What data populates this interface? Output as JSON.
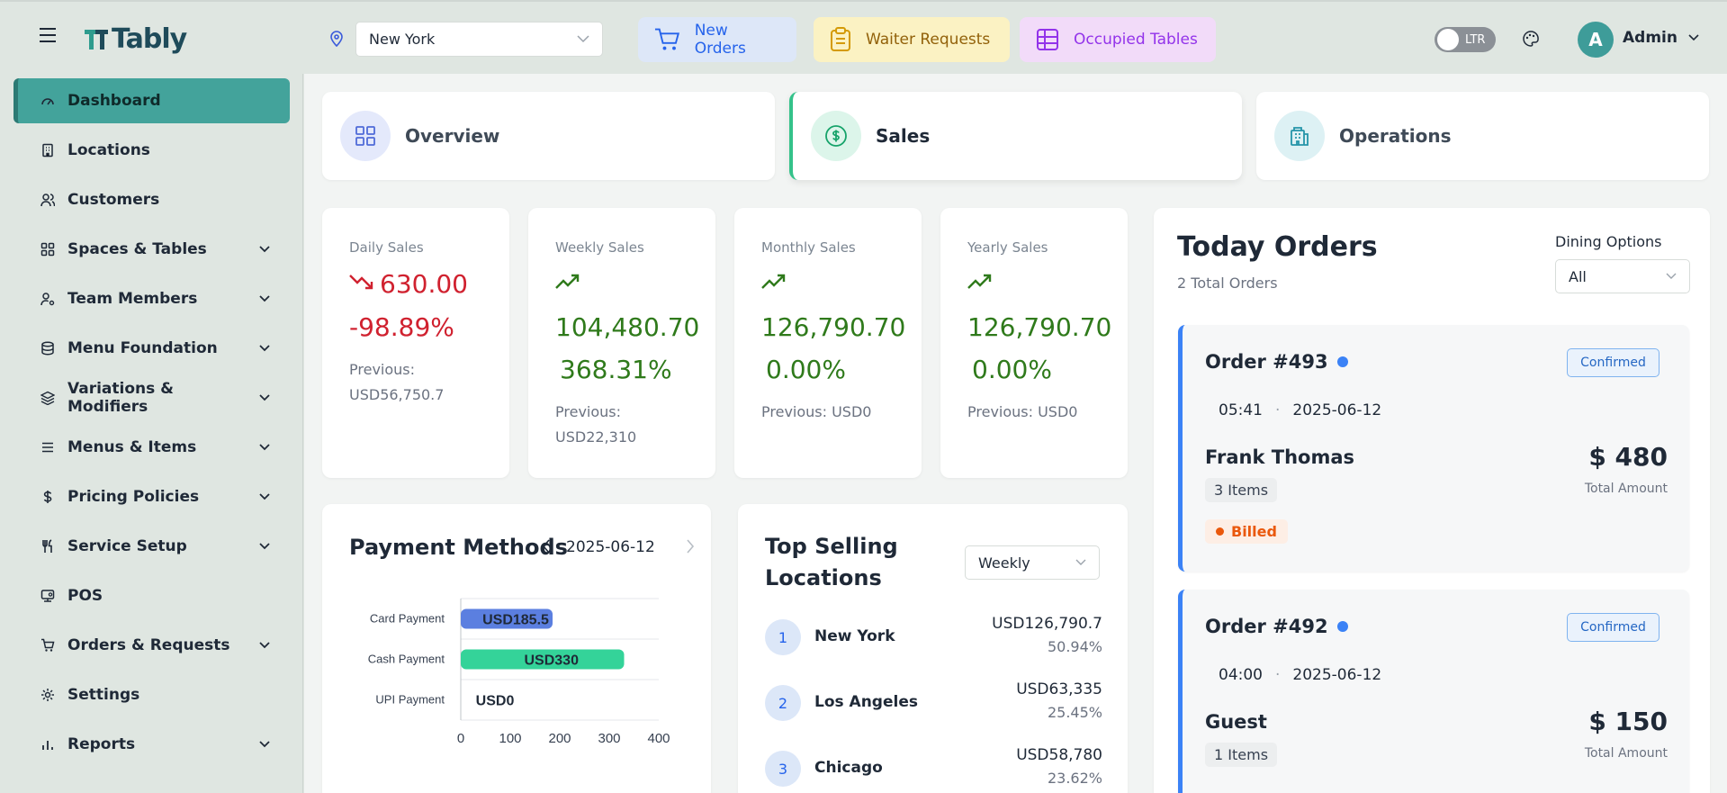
{
  "brand": {
    "name": "Tably"
  },
  "location_select": {
    "value": "New York"
  },
  "header_pills": {
    "new_orders": "New Orders",
    "waiter_requests": "Waiter Requests",
    "occupied_tables": "Occupied Tables"
  },
  "direction_toggle": {
    "label": "LTR"
  },
  "user": {
    "initial": "A",
    "name": "Admin"
  },
  "sidebar": {
    "items": [
      {
        "label": "Dashboard",
        "icon": "gauge-icon",
        "has_children": false,
        "active": true
      },
      {
        "label": "Locations",
        "icon": "building-icon",
        "has_children": false
      },
      {
        "label": "Customers",
        "icon": "users-icon",
        "has_children": false
      },
      {
        "label": "Spaces & Tables",
        "icon": "grid-icon",
        "has_children": true
      },
      {
        "label": "Team Members",
        "icon": "user-cog-icon",
        "has_children": true
      },
      {
        "label": "Menu Foundation",
        "icon": "database-icon",
        "has_children": true
      },
      {
        "label": "Variations & Modifiers",
        "icon": "layers-icon",
        "has_children": true
      },
      {
        "label": "Menus & Items",
        "icon": "list-icon",
        "has_children": true
      },
      {
        "label": "Pricing Policies",
        "icon": "dollar-icon",
        "has_children": true
      },
      {
        "label": "Service Setup",
        "icon": "utensils-icon",
        "has_children": true
      },
      {
        "label": "POS",
        "icon": "pos-icon",
        "has_children": false
      },
      {
        "label": "Orders & Requests",
        "icon": "cart-icon",
        "has_children": true
      },
      {
        "label": "Settings",
        "icon": "gear-icon",
        "has_children": false
      },
      {
        "label": "Reports",
        "icon": "bar-chart-icon",
        "has_children": true
      }
    ]
  },
  "tabs": {
    "overview": "Overview",
    "sales": "Sales",
    "operations": "Operations"
  },
  "sales_cards": [
    {
      "label": "Daily Sales",
      "value": "630.00",
      "change": "-98.89%",
      "trend": "down",
      "previous": "Previous: USD56,750.7"
    },
    {
      "label": "Weekly Sales",
      "value": "104,480.70",
      "change": "368.31%",
      "trend": "up",
      "previous": "Previous: USD22,310"
    },
    {
      "label": "Monthly Sales",
      "value": "126,790.70",
      "change": "0.00%",
      "trend": "up",
      "previous": "Previous: USD0"
    },
    {
      "label": "Yearly Sales",
      "value": "126,790.70",
      "change": "0.00%",
      "trend": "up",
      "previous": "Previous: USD0"
    }
  ],
  "payment_methods": {
    "title": "Payment Methods",
    "date": "2025-06-12"
  },
  "chart_data": {
    "type": "bar",
    "orientation": "horizontal",
    "categories": [
      "Card Payment",
      "Cash Payment",
      "UPI Payment"
    ],
    "values": [
      185.5,
      330,
      0
    ],
    "data_labels": [
      "USD185.5",
      "USD330",
      "USD0"
    ],
    "colors": [
      "#5b7fe0",
      "#34d399",
      "#cccccc"
    ],
    "x_ticks": [
      "0",
      "100",
      "200",
      "300",
      "400"
    ],
    "xlim": [
      0,
      400
    ]
  },
  "top_selling": {
    "title": "Top Selling Locations",
    "period": "Weekly",
    "rows": [
      {
        "rank": "1",
        "name": "New York",
        "amount": "USD126,790.7",
        "pct": "50.94%"
      },
      {
        "rank": "2",
        "name": "Los Angeles",
        "amount": "USD63,335",
        "pct": "25.45%"
      },
      {
        "rank": "3",
        "name": "Chicago",
        "amount": "USD58,780",
        "pct": "23.62%"
      }
    ]
  },
  "today_orders": {
    "title": "Today Orders",
    "subtitle": "2 Total Orders",
    "dining_label": "Dining Options",
    "dining_value": "All",
    "orders": [
      {
        "title": "Order #493",
        "status": "Confirmed",
        "time": "05:41",
        "date": "2025-06-12",
        "customer": "Frank Thomas",
        "items": "3 Items",
        "amount": "$ 480",
        "amount_label": "Total Amount",
        "payment": "Billed"
      },
      {
        "title": "Order #492",
        "status": "Confirmed",
        "time": "04:00",
        "date": "2025-06-12",
        "customer": "Guest",
        "items": "1 Items",
        "amount": "$ 150",
        "amount_label": "Total Amount"
      }
    ]
  }
}
